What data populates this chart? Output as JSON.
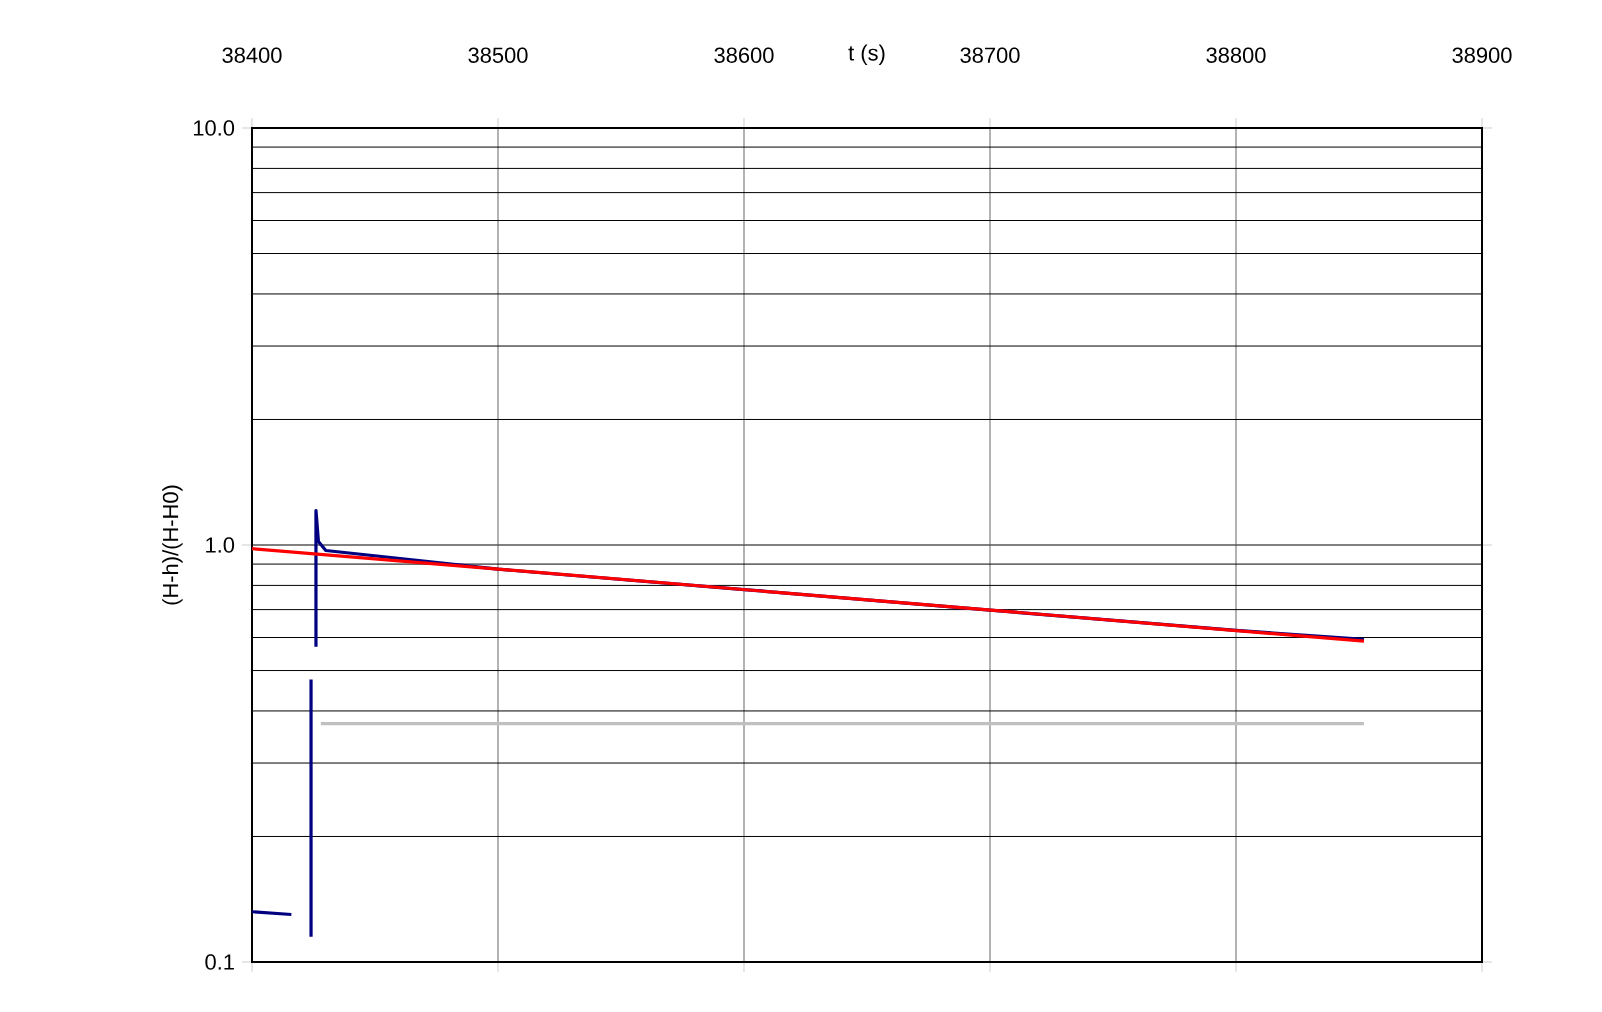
{
  "chart_data": {
    "type": "line",
    "xlabel": "t (s)",
    "ylabel": "(H-h)/(H-H0)",
    "xlim": [
      38400,
      38900
    ],
    "xticks": [
      38400,
      38500,
      38600,
      38700,
      38800,
      38900
    ],
    "ylim": [
      0.1,
      10
    ],
    "yticks": [
      {
        "value": 0.1,
        "label": "0.1"
      },
      {
        "value": 1,
        "label": "1.0"
      },
      {
        "value": 10,
        "label": "10.0"
      }
    ],
    "log": "y",
    "grid": true,
    "marker": "none",
    "series": [
      {
        "color": "#000080",
        "x": [
          38400,
          38416,
          38420,
          38424,
          38424,
          38425,
          38426,
          38426,
          38427,
          38430,
          38500,
          38600,
          38700,
          38800,
          38852
        ],
        "values": [
          0.132,
          0.13,
          null,
          0.115,
          0.476,
          null,
          0.57,
          1.21,
          1.02,
          0.97,
          0.875,
          0.782,
          0.698,
          0.624,
          0.594
        ]
      },
      {
        "color": "#ff0000",
        "x": [
          38400,
          38852
        ],
        "values": [
          0.98,
          0.588
        ]
      },
      {
        "color": "#c0c0c0",
        "x": [
          38428,
          38852
        ],
        "values": [
          0.373,
          0.373
        ]
      }
    ]
  }
}
